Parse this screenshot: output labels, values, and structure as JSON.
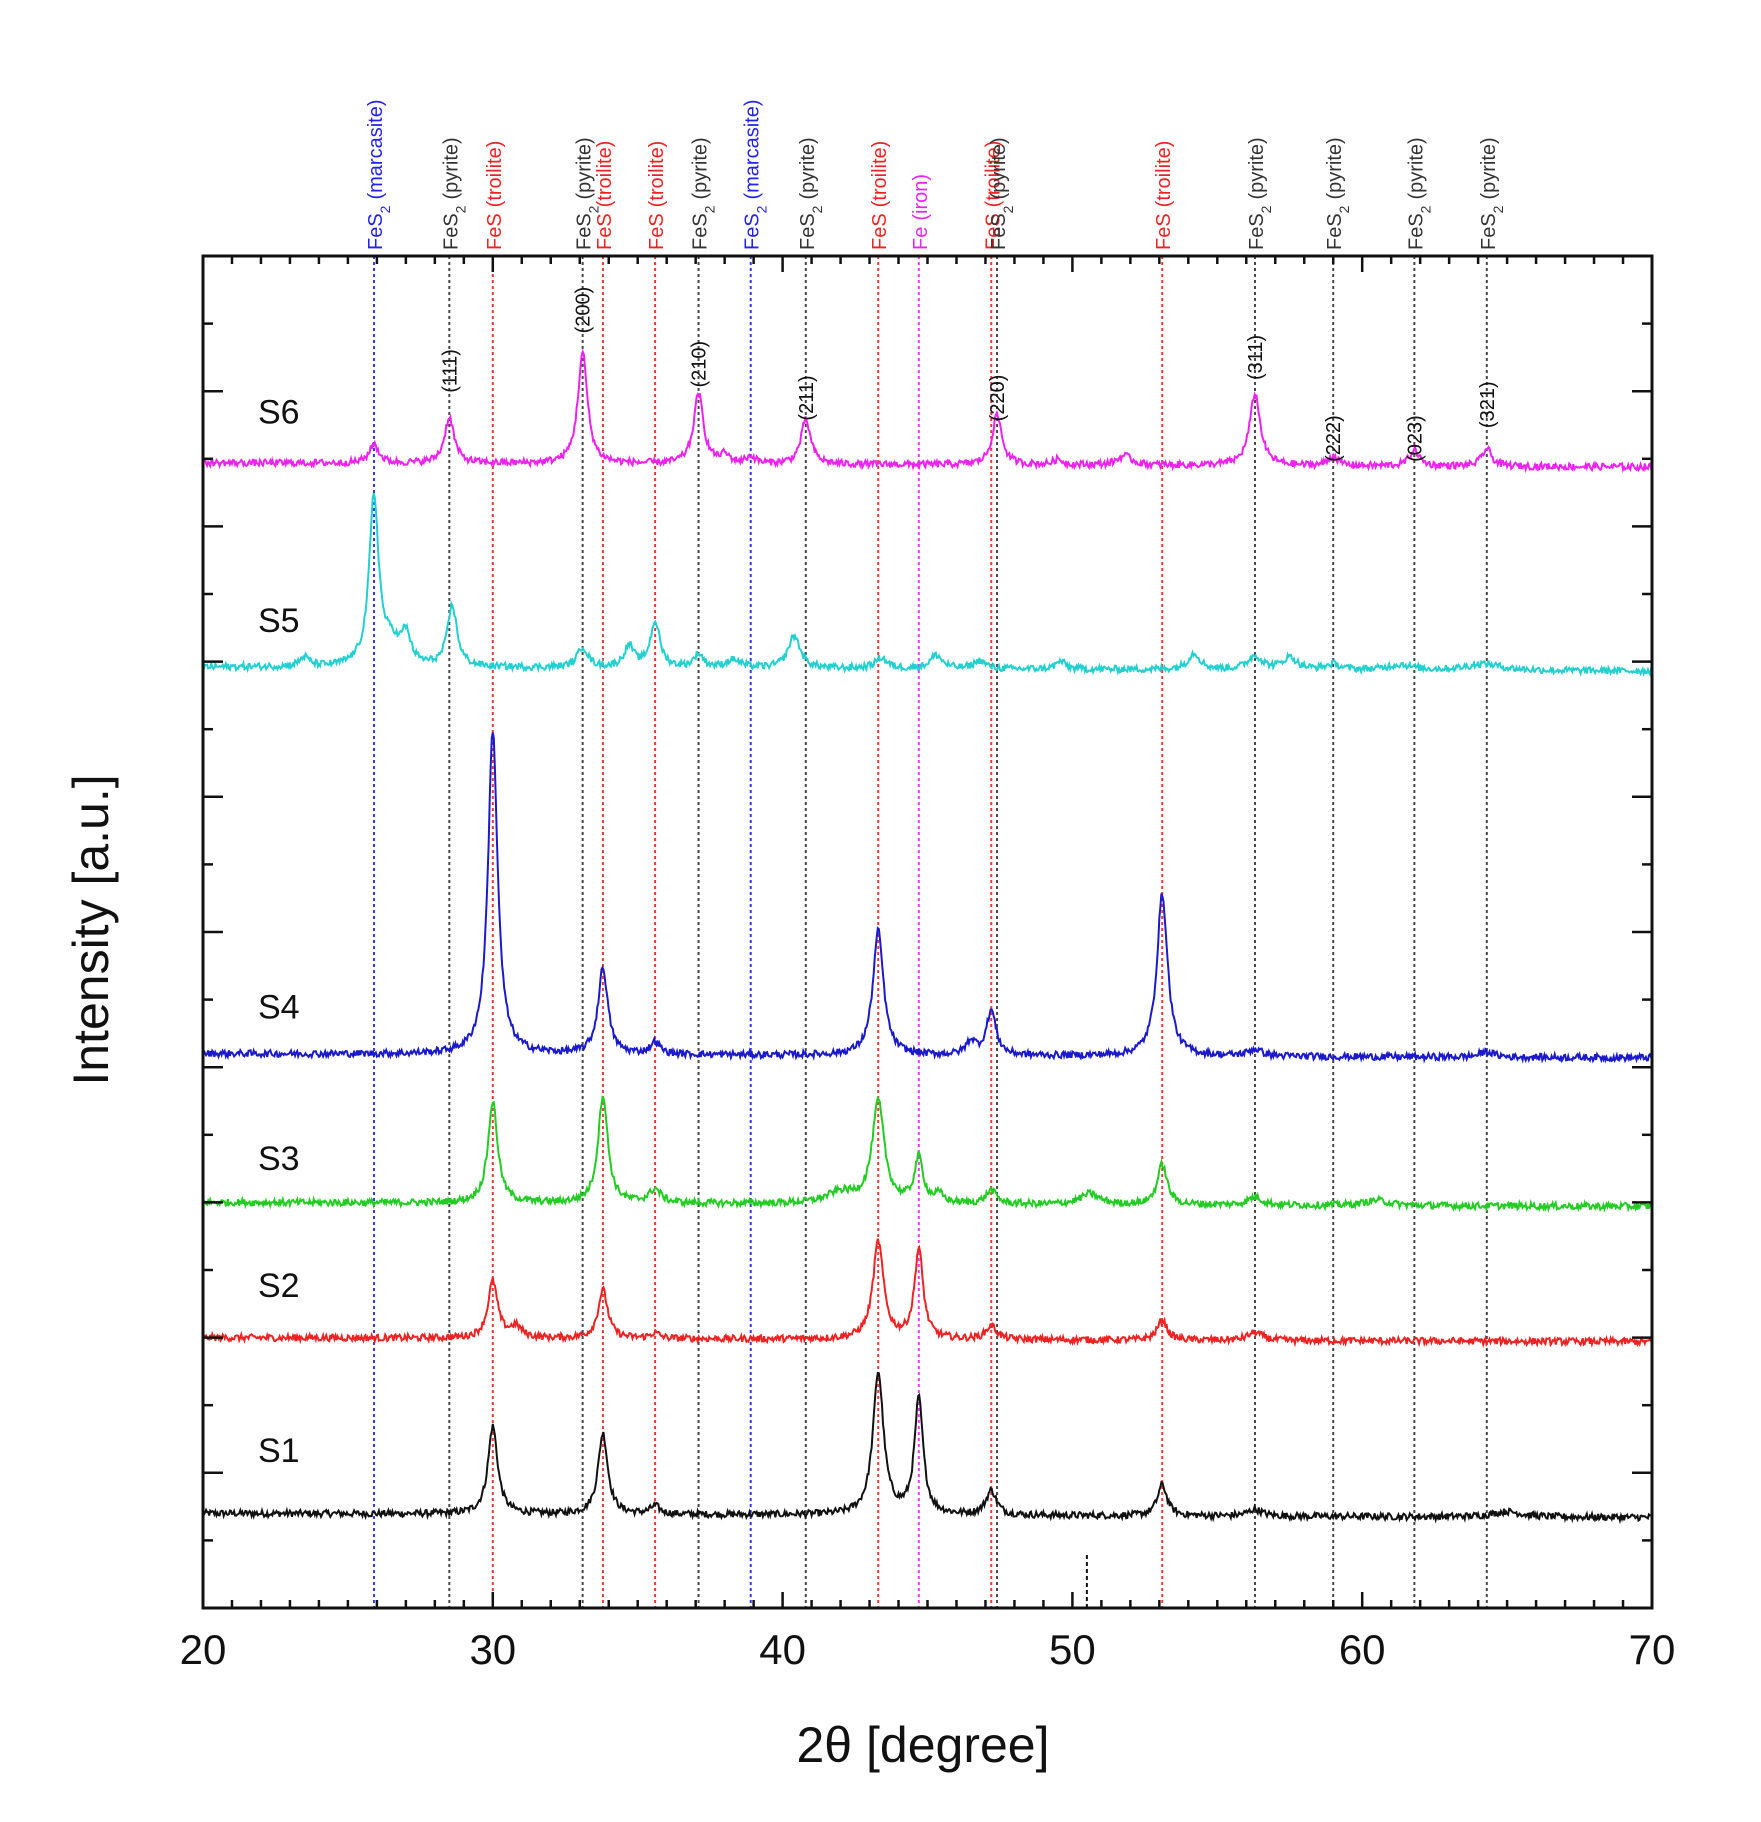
{
  "chart_data": {
    "type": "line",
    "title": "",
    "xlabel": "2θ [degree]",
    "ylabel": "Intensity [a.u.]",
    "xlim": [
      20,
      70
    ],
    "ylim": [
      0,
      100
    ],
    "x_ticks": [
      20,
      30,
      40,
      50,
      60,
      70
    ],
    "x_tick_labels": [
      "20",
      "30",
      "40",
      "50",
      "60",
      "70"
    ],
    "grid": false,
    "reference_lines": [
      {
        "x": 25.9,
        "formula": "FeS",
        "sub": "2",
        "phase": "(marcasite)",
        "color": "#2222ee"
      },
      {
        "x": 28.5,
        "formula": "FeS",
        "sub": "2",
        "phase": "(pyrite)",
        "color": "#333333"
      },
      {
        "x": 30.0,
        "formula": "FeS",
        "sub": "",
        "phase": "(troilite)",
        "color": "#ee2222"
      },
      {
        "x": 33.1,
        "formula": "FeS",
        "sub": "2",
        "phase": "(pyrite)",
        "color": "#333333"
      },
      {
        "x": 33.8,
        "formula": "FeS",
        "sub": "",
        "phase": "(troilite)",
        "color": "#ee2222"
      },
      {
        "x": 35.6,
        "formula": "FeS",
        "sub": "",
        "phase": "(troilite)",
        "color": "#ee2222"
      },
      {
        "x": 37.1,
        "formula": "FeS",
        "sub": "2",
        "phase": "(pyrite)",
        "color": "#333333"
      },
      {
        "x": 38.9,
        "formula": "FeS",
        "sub": "2",
        "phase": "(marcasite)",
        "color": "#2222ee"
      },
      {
        "x": 40.8,
        "formula": "FeS",
        "sub": "2",
        "phase": "(pyrite)",
        "color": "#333333"
      },
      {
        "x": 43.3,
        "formula": "FeS",
        "sub": "",
        "phase": "(troilite)",
        "color": "#ee2222"
      },
      {
        "x": 44.7,
        "formula": "Fe",
        "sub": "",
        "phase": "(iron)",
        "color": "#ee22ee"
      },
      {
        "x": 47.2,
        "formula": "FeS",
        "sub": "",
        "phase": "(troilite)",
        "color": "#ee2222"
      },
      {
        "x": 47.4,
        "formula": "FeS",
        "sub": "2",
        "phase": "(pyrite)",
        "color": "#333333"
      },
      {
        "x": 53.1,
        "formula": "FeS",
        "sub": "",
        "phase": "(troilite)",
        "color": "#ee2222"
      },
      {
        "x": 56.3,
        "formula": "FeS",
        "sub": "2",
        "phase": "(pyrite)",
        "color": "#333333"
      },
      {
        "x": 59.0,
        "formula": "FeS",
        "sub": "2",
        "phase": "(pyrite)",
        "color": "#333333"
      },
      {
        "x": 61.8,
        "formula": "FeS",
        "sub": "2",
        "phase": "(pyrite)",
        "color": "#333333"
      },
      {
        "x": 64.3,
        "formula": "FeS",
        "sub": "2",
        "phase": "(pyrite)",
        "color": "#333333"
      }
    ],
    "hkl_labels": [
      {
        "x": 28.5,
        "text": "(111)",
        "y": 91.5
      },
      {
        "x": 33.1,
        "text": "(200)",
        "y": 96.0
      },
      {
        "x": 37.1,
        "text": "(210)",
        "y": 92.0
      },
      {
        "x": 40.8,
        "text": "(211)",
        "y": 89.5
      },
      {
        "x": 47.4,
        "text": "(220)",
        "y": 89.5
      },
      {
        "x": 56.3,
        "text": "(311)",
        "y": 92.5
      },
      {
        "x": 59.0,
        "text": "(222)",
        "y": 86.5
      },
      {
        "x": 61.8,
        "text": "(023)",
        "y": 86.5
      },
      {
        "x": 64.3,
        "text": "(321)",
        "y": 89.0
      }
    ],
    "series": [
      {
        "name": "S1",
        "color": "#111111",
        "baseline": 7.0,
        "noise": 0.25,
        "label_y": 10.8,
        "peaks": [
          [
            30.0,
            6.5,
            0.2
          ],
          [
            33.8,
            6.0,
            0.2
          ],
          [
            35.6,
            0.6,
            0.2
          ],
          [
            43.3,
            10.5,
            0.22
          ],
          [
            44.7,
            8.5,
            0.18
          ],
          [
            47.2,
            1.8,
            0.22
          ],
          [
            53.1,
            2.3,
            0.2
          ],
          [
            56.3,
            0.5,
            0.3
          ],
          [
            65.0,
            0.4,
            0.6
          ]
        ]
      },
      {
        "name": "S2",
        "color": "#ee2222",
        "baseline": 20.0,
        "noise": 0.25,
        "label_y": 23.0,
        "peaks": [
          [
            30.0,
            4.2,
            0.2
          ],
          [
            30.8,
            0.8,
            0.25
          ],
          [
            33.8,
            3.6,
            0.2
          ],
          [
            35.6,
            0.4,
            0.2
          ],
          [
            43.3,
            7.2,
            0.22
          ],
          [
            44.7,
            6.6,
            0.18
          ],
          [
            47.2,
            1.0,
            0.22
          ],
          [
            53.1,
            1.5,
            0.2
          ],
          [
            56.3,
            0.6,
            0.3
          ]
        ]
      },
      {
        "name": "S3",
        "color": "#22cc22",
        "baseline": 30.0,
        "noise": 0.25,
        "label_y": 32.4,
        "peaks": [
          [
            30.0,
            7.5,
            0.2
          ],
          [
            33.8,
            8.0,
            0.2
          ],
          [
            35.6,
            1.0,
            0.25
          ],
          [
            42.0,
            0.8,
            0.6
          ],
          [
            43.3,
            7.5,
            0.25
          ],
          [
            44.7,
            3.3,
            0.18
          ],
          [
            45.4,
            0.6,
            0.2
          ],
          [
            47.2,
            1.0,
            0.22
          ],
          [
            50.6,
            0.8,
            0.4
          ],
          [
            53.1,
            3.0,
            0.2
          ],
          [
            56.3,
            0.6,
            0.3
          ],
          [
            60.5,
            0.4,
            0.5
          ]
        ]
      },
      {
        "name": "S4",
        "color": "#1a1acc",
        "baseline": 41.0,
        "noise": 0.25,
        "label_y": 43.6,
        "peaks": [
          [
            30.0,
            24.0,
            0.2
          ],
          [
            33.8,
            6.4,
            0.2
          ],
          [
            35.6,
            0.9,
            0.2
          ],
          [
            43.3,
            9.2,
            0.22
          ],
          [
            46.5,
            1.0,
            0.2
          ],
          [
            47.2,
            3.3,
            0.2
          ],
          [
            53.1,
            12.0,
            0.22
          ],
          [
            56.3,
            0.5,
            0.3
          ],
          [
            64.3,
            0.4,
            0.3
          ]
        ]
      },
      {
        "name": "S5",
        "color": "#22d0d0",
        "baseline": 69.6,
        "noise": 0.25,
        "label_y": 72.2,
        "peaks": [
          [
            23.5,
            0.7,
            0.2
          ],
          [
            25.9,
            12.5,
            0.2
          ],
          [
            26.5,
            1.5,
            0.3
          ],
          [
            27.0,
            2.2,
            0.2
          ],
          [
            28.6,
            4.5,
            0.2
          ],
          [
            33.1,
            1.5,
            0.22
          ],
          [
            34.7,
            1.6,
            0.2
          ],
          [
            35.6,
            3.4,
            0.2
          ],
          [
            37.1,
            1.0,
            0.2
          ],
          [
            38.3,
            0.6,
            0.3
          ],
          [
            40.4,
            2.4,
            0.25
          ],
          [
            43.4,
            0.8,
            0.25
          ],
          [
            45.3,
            1.0,
            0.25
          ],
          [
            46.8,
            0.6,
            0.25
          ],
          [
            49.6,
            0.6,
            0.2
          ],
          [
            54.2,
            1.2,
            0.25
          ],
          [
            56.3,
            1.0,
            0.3
          ],
          [
            57.5,
            0.9,
            0.3
          ],
          [
            59.0,
            0.4,
            0.3
          ],
          [
            61.3,
            0.4,
            0.5
          ],
          [
            64.2,
            0.5,
            0.7
          ]
        ]
      },
      {
        "name": "S6",
        "color": "#ee22ee",
        "baseline": 84.7,
        "noise": 0.25,
        "label_y": 87.6,
        "peaks": [
          [
            25.9,
            1.4,
            0.2
          ],
          [
            28.5,
            3.4,
            0.2
          ],
          [
            33.1,
            8.2,
            0.2
          ],
          [
            37.1,
            5.2,
            0.2
          ],
          [
            38.0,
            0.6,
            0.2
          ],
          [
            38.9,
            0.5,
            0.2
          ],
          [
            40.8,
            3.3,
            0.2
          ],
          [
            47.4,
            3.7,
            0.2
          ],
          [
            49.5,
            0.4,
            0.2
          ],
          [
            51.8,
            0.7,
            0.3
          ],
          [
            56.3,
            5.3,
            0.22
          ],
          [
            59.0,
            0.7,
            0.2
          ],
          [
            61.8,
            1.2,
            0.2
          ],
          [
            64.3,
            1.3,
            0.2
          ]
        ]
      }
    ]
  }
}
